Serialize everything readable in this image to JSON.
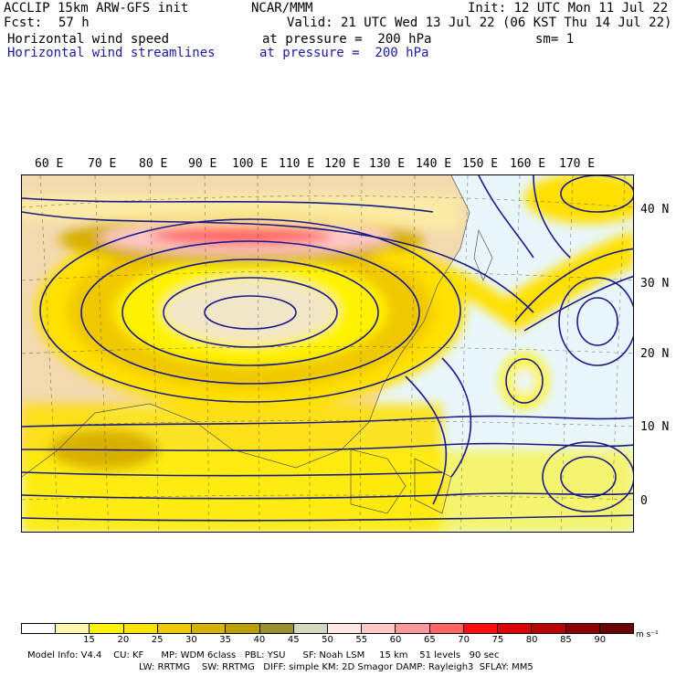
{
  "header": {
    "model": "ACCLIP 15km ARW-GFS init",
    "org": "NCAR/MMM",
    "init": "Init: 12 UTC Mon 11 Jul 22",
    "fcst_label": "Fcst:",
    "fcst_value": "57 h",
    "valid": "Valid: 21 UTC Wed 13 Jul 22 (06 KST Thu 14 Jul 22)",
    "field1_name": "Horizontal wind speed",
    "field1_level": "at pressure =  200 hPa",
    "field1_smooth": "sm= 1",
    "field2_name": "Horizontal wind streamlines",
    "field2_level": "at pressure =  200 hPa"
  },
  "map": {
    "lon_labels": [
      "60 E",
      "70 E",
      "80 E",
      "90 E",
      "100 E",
      "110 E",
      "120 E",
      "130 E",
      "140 E",
      "150 E",
      "160 E",
      "170 E"
    ],
    "lat_labels": [
      "40 N",
      "30 N",
      "20 N",
      "10 N",
      "0"
    ],
    "land_color": "#f2d9b0",
    "ocean_color": "#e8f6fb",
    "streamline_color": "#1a1a8c"
  },
  "colorbar": {
    "labels": [
      "15",
      "20",
      "25",
      "30",
      "35",
      "40",
      "45",
      "50",
      "55",
      "60",
      "65",
      "70",
      "75",
      "80",
      "85",
      "90"
    ],
    "unit": "m s⁻¹",
    "colors": [
      "#ffffff",
      "#fff7b0",
      "#fff200",
      "#ffe000",
      "#f0c800",
      "#d8b000",
      "#b8a000",
      "#9a9030",
      "#d8d8c0",
      "#ffe8e8",
      "#ffc8c8",
      "#ff9898",
      "#ff6060",
      "#ff1010",
      "#e00000",
      "#b80000",
      "#900000",
      "#6a0000"
    ]
  },
  "footer": {
    "line1": "Model Info: V4.4    CU: KF      MP: WDM 6class   PBL: YSU      SF: Noah LSM     15 km    51 levels   90 sec",
    "line2": "LW: RRTMG    SW: RRTMG   DIFF: simple KM: 2D Smagor DAMP: Rayleigh3  SFLAY: MM5"
  }
}
